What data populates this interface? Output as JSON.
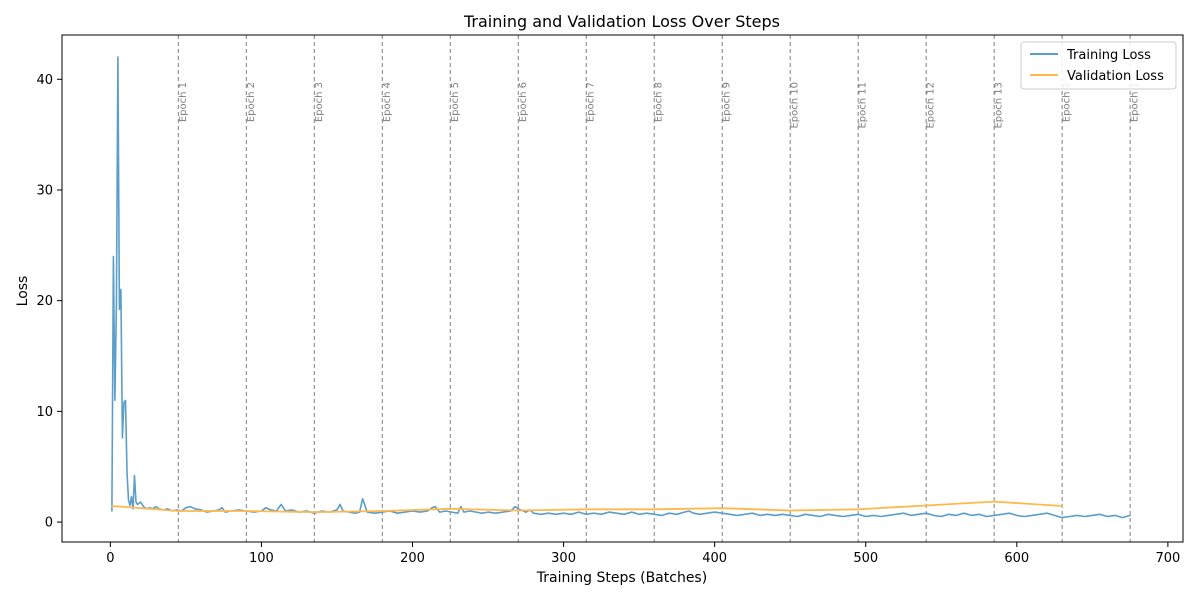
{
  "chart_data": {
    "type": "line",
    "title": "Training and Validation Loss Over Steps",
    "xlabel": "Training Steps (Batches)",
    "ylabel": "Loss",
    "xlim": [
      -32,
      710
    ],
    "ylim": [
      -1.8,
      44
    ],
    "xticks": [
      0,
      100,
      200,
      300,
      400,
      500,
      600,
      700
    ],
    "yticks": [
      0,
      10,
      20,
      30,
      40
    ],
    "grid": false,
    "legend_position": "top-right",
    "epoch_markers": [
      {
        "x": 45,
        "label": "Epoch 1"
      },
      {
        "x": 90,
        "label": "Epoch 2"
      },
      {
        "x": 135,
        "label": "Epoch 3"
      },
      {
        "x": 180,
        "label": "Epoch 4"
      },
      {
        "x": 225,
        "label": "Epoch 5"
      },
      {
        "x": 270,
        "label": "Epoch 6"
      },
      {
        "x": 315,
        "label": "Epoch 7"
      },
      {
        "x": 360,
        "label": "Epoch 8"
      },
      {
        "x": 405,
        "label": "Epoch 9"
      },
      {
        "x": 450,
        "label": "Epoch 10"
      },
      {
        "x": 495,
        "label": "Epoch 11"
      },
      {
        "x": 540,
        "label": "Epoch 12"
      },
      {
        "x": 585,
        "label": "Epoch 13"
      },
      {
        "x": 630,
        "label": "Epoch 1"
      },
      {
        "x": 675,
        "label": "Epoch 1"
      }
    ],
    "series": [
      {
        "name": "Training Loss",
        "color": "#5b9ec9",
        "x": [
          1,
          2,
          3,
          4,
          5,
          6,
          7,
          8,
          9,
          10,
          11,
          12,
          13,
          14,
          15,
          16,
          17,
          18,
          19,
          20,
          22,
          24,
          26,
          28,
          30,
          32,
          35,
          38,
          41,
          44,
          47,
          50,
          53,
          56,
          60,
          64,
          68,
          72,
          74,
          76,
          80,
          85,
          90,
          95,
          100,
          103,
          106,
          110,
          113,
          116,
          120,
          125,
          130,
          135,
          140,
          145,
          150,
          152,
          154,
          158,
          162,
          165,
          167,
          170,
          175,
          180,
          185,
          190,
          195,
          200,
          205,
          210,
          213,
          215,
          218,
          222,
          226,
          230,
          232,
          234,
          238,
          242,
          246,
          250,
          255,
          260,
          265,
          268,
          270,
          275,
          278,
          280,
          285,
          290,
          295,
          300,
          305,
          310,
          315,
          320,
          325,
          330,
          335,
          340,
          345,
          350,
          355,
          360,
          365,
          370,
          375,
          380,
          383,
          386,
          390,
          395,
          400,
          405,
          410,
          415,
          420,
          425,
          430,
          435,
          440,
          445,
          450,
          455,
          460,
          465,
          470,
          475,
          480,
          485,
          490,
          495,
          500,
          505,
          510,
          515,
          520,
          525,
          530,
          535,
          540,
          545,
          550,
          555,
          560,
          565,
          570,
          575,
          580,
          585,
          590,
          595,
          600,
          605,
          610,
          615,
          620,
          625,
          630,
          635,
          640,
          645,
          650,
          655,
          660,
          665,
          670,
          675
        ],
        "y": [
          1.0,
          24.0,
          11.0,
          19.5,
          42.0,
          19.2,
          21.0,
          7.6,
          10.8,
          11.0,
          4.5,
          2.0,
          1.5,
          2.3,
          1.2,
          4.2,
          1.8,
          1.6,
          1.7,
          1.8,
          1.4,
          1.2,
          1.3,
          1.2,
          1.4,
          1.2,
          1.1,
          1.2,
          1.0,
          1.1,
          1.0,
          1.3,
          1.4,
          1.2,
          1.1,
          0.9,
          1.0,
          1.1,
          1.3,
          0.9,
          1.0,
          1.1,
          1.0,
          0.9,
          1.0,
          1.3,
          1.1,
          1.0,
          1.6,
          1.0,
          1.1,
          0.9,
          1.0,
          0.8,
          1.0,
          0.9,
          1.1,
          1.6,
          1.0,
          0.9,
          0.8,
          0.9,
          2.1,
          0.9,
          0.8,
          0.9,
          1.0,
          0.8,
          0.9,
          1.0,
          0.9,
          1.0,
          1.3,
          1.4,
          0.9,
          1.0,
          0.9,
          0.8,
          1.4,
          0.9,
          1.0,
          0.9,
          0.8,
          0.9,
          0.8,
          0.9,
          1.0,
          1.4,
          1.2,
          0.9,
          1.1,
          0.8,
          0.7,
          0.8,
          0.7,
          0.8,
          0.7,
          0.9,
          0.7,
          0.8,
          0.7,
          0.9,
          0.8,
          0.7,
          0.9,
          0.7,
          0.8,
          0.7,
          0.6,
          0.8,
          0.7,
          0.9,
          1.0,
          0.8,
          0.7,
          0.8,
          0.9,
          0.8,
          0.7,
          0.6,
          0.7,
          0.8,
          0.6,
          0.7,
          0.6,
          0.7,
          0.6,
          0.5,
          0.7,
          0.6,
          0.5,
          0.7,
          0.6,
          0.5,
          0.6,
          0.7,
          0.5,
          0.6,
          0.5,
          0.6,
          0.7,
          0.8,
          0.6,
          0.7,
          0.8,
          0.6,
          0.5,
          0.7,
          0.6,
          0.8,
          0.6,
          0.7,
          0.5,
          0.6,
          0.7,
          0.8,
          0.6,
          0.5,
          0.6,
          0.7,
          0.8,
          0.6,
          0.4,
          0.5,
          0.6,
          0.5,
          0.6,
          0.7,
          0.5,
          0.6,
          0.4,
          0.6
        ]
      },
      {
        "name": "Validation Loss",
        "color": "#ffb84d",
        "x": [
          1,
          45,
          90,
          135,
          180,
          225,
          270,
          315,
          360,
          405,
          450,
          495,
          540,
          585,
          630
        ],
        "y": [
          1.45,
          1.0,
          1.0,
          0.9,
          1.0,
          1.2,
          1.05,
          1.15,
          1.15,
          1.25,
          1.05,
          1.15,
          1.5,
          1.85,
          1.45
        ]
      }
    ]
  }
}
